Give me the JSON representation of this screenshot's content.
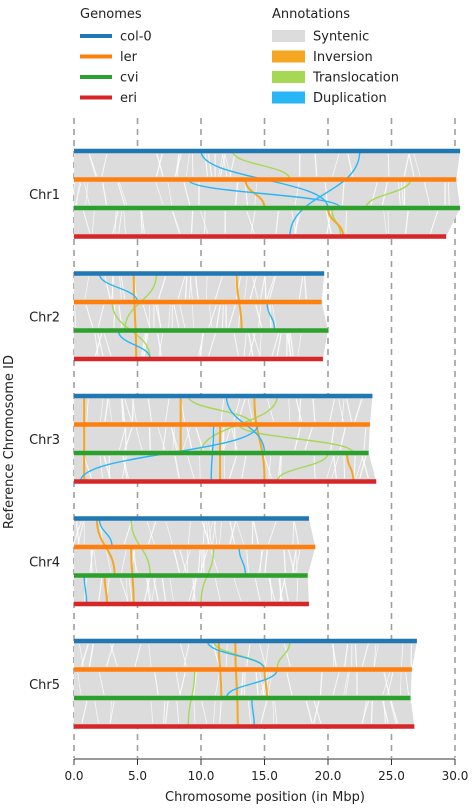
{
  "legend": {
    "genomes_title": "Genomes",
    "annotations_title": "Annotations",
    "genomes": [
      {
        "name": "col-0",
        "color": "#1f77b4"
      },
      {
        "name": "ler",
        "color": "#ff7f0e"
      },
      {
        "name": "cvi",
        "color": "#2ca02c"
      },
      {
        "name": "eri",
        "color": "#d62728"
      }
    ],
    "annotations": [
      {
        "name": "Syntenic",
        "color": "#dcdcdc"
      },
      {
        "name": "Inversion",
        "color": "#f5a623"
      },
      {
        "name": "Translocation",
        "color": "#a6d854"
      },
      {
        "name": "Duplication",
        "color": "#29b6f6"
      }
    ]
  },
  "chart_data": {
    "type": "synteny",
    "xlabel": "Chromosome position (in Mbp)",
    "ylabel": "Reference Chromosome ID",
    "xlim": [
      0,
      30
    ],
    "xticks": [
      "0.0",
      "5.0",
      "10.0",
      "15.0",
      "20.0",
      "25.0",
      "30.0"
    ],
    "grid": "vertical dashed",
    "genome_order": [
      "col-0",
      "ler",
      "cvi",
      "eri"
    ],
    "chromosomes": [
      {
        "id": "Chr1",
        "lengths": [
          30.4,
          30.1,
          30.4,
          29.3
        ],
        "inversions": [
          [
            13.5,
            15.0,
            1,
            2
          ],
          [
            20.0,
            21.2,
            2,
            3
          ]
        ],
        "translocations": [
          [
            12.5,
            17.0,
            0,
            1
          ],
          [
            20.3,
            21.0,
            2,
            3
          ],
          [
            26.5,
            23.0,
            1,
            2
          ]
        ],
        "duplications": [
          [
            10.0,
            20.0,
            0,
            2
          ],
          [
            22.5,
            17.0,
            0,
            3
          ],
          [
            9.0,
            21.0,
            1,
            2
          ]
        ]
      },
      {
        "id": "Chr2",
        "lengths": [
          19.7,
          19.5,
          20.0,
          19.6
        ],
        "inversions": [
          [
            4.7,
            4.9,
            0,
            3
          ],
          [
            12.8,
            13.2,
            0,
            2
          ]
        ],
        "translocations": [
          [
            3.0,
            6.0,
            1,
            3
          ],
          [
            6.5,
            4.0,
            0,
            2
          ]
        ],
        "duplications": [
          [
            2.0,
            5.0,
            0,
            1
          ],
          [
            15.2,
            15.8,
            1,
            2
          ],
          [
            3.5,
            6.0,
            2,
            3
          ]
        ]
      },
      {
        "id": "Chr3",
        "lengths": [
          23.5,
          23.3,
          23.2,
          23.8
        ],
        "inversions": [
          [
            0.8,
            0.8,
            0,
            3
          ],
          [
            8.4,
            8.4,
            0,
            2
          ],
          [
            11.5,
            11.5,
            1,
            3
          ],
          [
            14.2,
            15.0,
            0,
            3
          ],
          [
            21.5,
            22.0,
            2,
            3
          ]
        ],
        "translocations": [
          [
            9.0,
            14.0,
            0,
            1
          ],
          [
            13.0,
            22.0,
            1,
            2
          ],
          [
            16.0,
            10.0,
            0,
            2
          ],
          [
            20.0,
            16.0,
            2,
            3
          ]
        ],
        "duplications": [
          [
            14.5,
            0.5,
            1,
            3
          ],
          [
            12.0,
            15.0,
            0,
            2
          ],
          [
            11.0,
            10.8,
            1,
            3
          ]
        ]
      },
      {
        "id": "Chr4",
        "lengths": [
          18.5,
          19.0,
          18.4,
          18.5
        ],
        "inversions": [
          [
            1.8,
            3.2,
            0,
            2
          ],
          [
            4.5,
            4.7,
            1,
            3
          ],
          [
            2.4,
            2.6,
            2,
            3
          ]
        ],
        "translocations": [
          [
            4.5,
            6.0,
            0,
            2
          ],
          [
            11.0,
            10.0,
            1,
            3
          ]
        ],
        "duplications": [
          [
            2.0,
            3.0,
            0,
            1
          ],
          [
            13.0,
            13.5,
            1,
            2
          ],
          [
            0.8,
            1.0,
            2,
            3
          ]
        ]
      },
      {
        "id": "Chr5",
        "lengths": [
          27.0,
          26.6,
          26.5,
          26.8
        ],
        "inversions": [
          [
            12.7,
            12.9,
            0,
            3
          ],
          [
            11.4,
            11.6,
            0,
            2
          ],
          [
            15.0,
            15.2,
            1,
            2
          ]
        ],
        "translocations": [
          [
            11.0,
            15.0,
            0,
            1
          ],
          [
            9.5,
            9.0,
            1,
            3
          ],
          [
            17.0,
            16.0,
            0,
            1
          ]
        ],
        "duplications": [
          [
            10.5,
            15.0,
            0,
            1
          ],
          [
            16.0,
            12.0,
            1,
            2
          ],
          [
            14.0,
            14.2,
            2,
            3
          ]
        ]
      }
    ]
  }
}
